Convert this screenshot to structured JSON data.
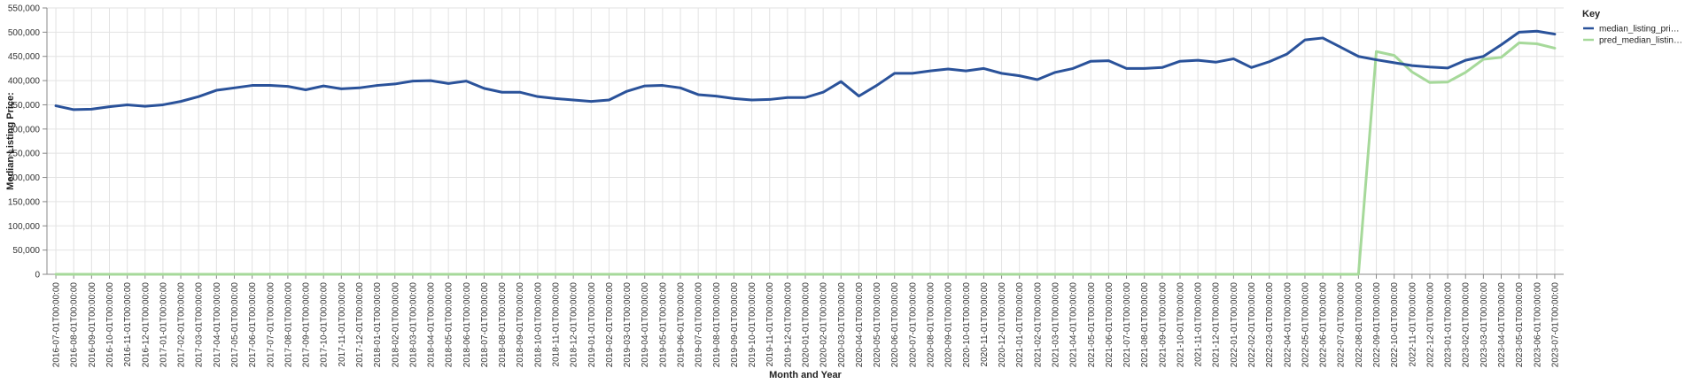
{
  "chart_data": {
    "type": "line",
    "xlabel": "Month and Year",
    "ylabel": "Median Listing Price:",
    "ylim": [
      0,
      550000
    ],
    "yticks": [
      "0",
      "50,000",
      "100,000",
      "150,000",
      "200,000",
      "250,000",
      "300,000",
      "350,000",
      "400,000",
      "450,000",
      "500,000",
      "550,000"
    ],
    "grid": true,
    "legend": {
      "title": "Key",
      "placement": "right"
    },
    "categories": [
      "2016-07-01T00:00:00",
      "2016-08-01T00:00:00",
      "2016-09-01T00:00:00",
      "2016-10-01T00:00:00",
      "2016-11-01T00:00:00",
      "2016-12-01T00:00:00",
      "2017-01-01T00:00:00",
      "2017-02-01T00:00:00",
      "2017-03-01T00:00:00",
      "2017-04-01T00:00:00",
      "2017-05-01T00:00:00",
      "2017-06-01T00:00:00",
      "2017-07-01T00:00:00",
      "2017-08-01T00:00:00",
      "2017-09-01T00:00:00",
      "2017-10-01T00:00:00",
      "2017-11-01T00:00:00",
      "2017-12-01T00:00:00",
      "2018-01-01T00:00:00",
      "2018-02-01T00:00:00",
      "2018-03-01T00:00:00",
      "2018-04-01T00:00:00",
      "2018-05-01T00:00:00",
      "2018-06-01T00:00:00",
      "2018-07-01T00:00:00",
      "2018-08-01T00:00:00",
      "2018-09-01T00:00:00",
      "2018-10-01T00:00:00",
      "2018-11-01T00:00:00",
      "2018-12-01T00:00:00",
      "2019-01-01T00:00:00",
      "2019-02-01T00:00:00",
      "2019-03-01T00:00:00",
      "2019-04-01T00:00:00",
      "2019-05-01T00:00:00",
      "2019-06-01T00:00:00",
      "2019-07-01T00:00:00",
      "2019-08-01T00:00:00",
      "2019-09-01T00:00:00",
      "2019-10-01T00:00:00",
      "2019-11-01T00:00:00",
      "2019-12-01T00:00:00",
      "2020-01-01T00:00:00",
      "2020-02-01T00:00:00",
      "2020-03-01T00:00:00",
      "2020-04-01T00:00:00",
      "2020-05-01T00:00:00",
      "2020-06-01T00:00:00",
      "2020-07-01T00:00:00",
      "2020-08-01T00:00:00",
      "2020-09-01T00:00:00",
      "2020-10-01T00:00:00",
      "2020-11-01T00:00:00",
      "2020-12-01T00:00:00",
      "2021-01-01T00:00:00",
      "2021-02-01T00:00:00",
      "2021-03-01T00:00:00",
      "2021-04-01T00:00:00",
      "2021-05-01T00:00:00",
      "2021-06-01T00:00:00",
      "2021-07-01T00:00:00",
      "2021-08-01T00:00:00",
      "2021-09-01T00:00:00",
      "2021-10-01T00:00:00",
      "2021-11-01T00:00:00",
      "2021-12-01T00:00:00",
      "2022-01-01T00:00:00",
      "2022-02-01T00:00:00",
      "2022-03-01T00:00:00",
      "2022-04-01T00:00:00",
      "2022-05-01T00:00:00",
      "2022-06-01T00:00:00",
      "2022-07-01T00:00:00",
      "2022-08-01T00:00:00",
      "2022-09-01T00:00:00",
      "2022-10-01T00:00:00",
      "2022-11-01T00:00:00",
      "2022-12-01T00:00:00",
      "2023-01-01T00:00:00",
      "2023-02-01T00:00:00",
      "2023-03-01T00:00:00",
      "2023-04-01T00:00:00",
      "2023-05-01T00:00:00",
      "2023-06-01T00:00:00",
      "2023-07-01T00:00:00"
    ],
    "series": [
      {
        "name": "median_listing_pri…",
        "color": "#2a529a",
        "values": [
          348000,
          340000,
          341000,
          346000,
          350000,
          347000,
          350000,
          357000,
          367000,
          380000,
          385000,
          390000,
          390000,
          388000,
          381000,
          389000,
          383000,
          385000,
          390000,
          393000,
          399000,
          400000,
          394000,
          399000,
          384000,
          376000,
          376000,
          367000,
          363000,
          360000,
          357000,
          360000,
          378000,
          389000,
          390000,
          385000,
          371000,
          368000,
          363000,
          360000,
          361000,
          365000,
          365000,
          376000,
          398000,
          368000,
          390000,
          415000,
          415000,
          420000,
          424000,
          420000,
          425000,
          415000,
          410000,
          402000,
          417000,
          425000,
          440000,
          441000,
          425000,
          425000,
          427000,
          440000,
          442000,
          438000,
          445000,
          427000,
          439000,
          455000,
          484000,
          488000,
          469000,
          450000,
          443000,
          437000,
          431000,
          428000,
          426000,
          442000,
          450000,
          474000,
          500000,
          502000,
          496000
        ]
      },
      {
        "name": "pred_median_listin…",
        "color": "#a6d99a",
        "values": [
          0,
          0,
          0,
          0,
          0,
          0,
          0,
          0,
          0,
          0,
          0,
          0,
          0,
          0,
          0,
          0,
          0,
          0,
          0,
          0,
          0,
          0,
          0,
          0,
          0,
          0,
          0,
          0,
          0,
          0,
          0,
          0,
          0,
          0,
          0,
          0,
          0,
          0,
          0,
          0,
          0,
          0,
          0,
          0,
          0,
          0,
          0,
          0,
          0,
          0,
          0,
          0,
          0,
          0,
          0,
          0,
          0,
          0,
          0,
          0,
          0,
          0,
          0,
          0,
          0,
          0,
          0,
          0,
          0,
          0,
          0,
          0,
          0,
          0,
          460000,
          452000,
          418000,
          396000,
          397000,
          417000,
          444000,
          448000,
          478000,
          476000,
          467000
        ]
      }
    ]
  }
}
